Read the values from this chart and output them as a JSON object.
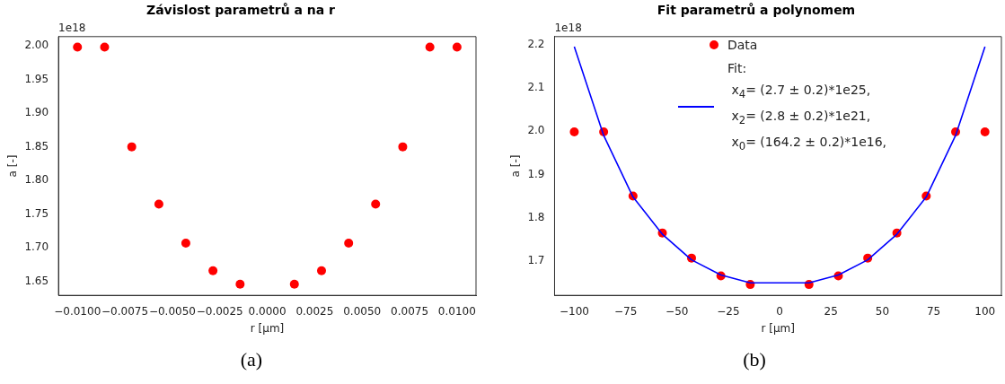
{
  "chart_data": [
    {
      "type": "scatter",
      "title": "Závislost parametrů a na r",
      "xlabel": "r [μm]",
      "ylabel": "a [-]",
      "annotations": [
        "1e18",
        "(a)"
      ],
      "marker": "circle",
      "grid": false,
      "x": [
        -0.01,
        -0.00857,
        -0.00714,
        -0.00571,
        -0.00429,
        -0.00286,
        -0.00143,
        0.00143,
        0.00286,
        0.00429,
        0.00571,
        0.00714,
        0.00857,
        0.01
      ],
      "series": [
        {
          "color": "#ff0000",
          "values": [
            1.998,
            1.998,
            1.85,
            1.765,
            1.707,
            1.666,
            1.646,
            1.646,
            1.666,
            1.707,
            1.765,
            1.85,
            1.998,
            1.998
          ]
        }
      ],
      "xlim": [
        -0.011,
        0.011
      ],
      "ylim": [
        1.6295,
        2.0136
      ],
      "xticks": [
        {
          "value": -0.01,
          "label": "−0.0100"
        },
        {
          "value": -0.0075,
          "label": "−0.0075"
        },
        {
          "value": -0.005,
          "label": "−0.0050"
        },
        {
          "value": -0.0025,
          "label": "−0.0025"
        },
        {
          "value": 0,
          "label": "0.0000"
        },
        {
          "value": 0.0025,
          "label": "0.0025"
        },
        {
          "value": 0.005,
          "label": "0.0050"
        },
        {
          "value": 0.0075,
          "label": "0.0075"
        },
        {
          "value": 0.01,
          "label": "0.0100"
        }
      ],
      "yticks": [
        {
          "value": 1.65,
          "label": "1.65"
        },
        {
          "value": 1.7,
          "label": "1.70"
        },
        {
          "value": 1.75,
          "label": "1.75"
        },
        {
          "value": 1.8,
          "label": "1.80"
        },
        {
          "value": 1.85,
          "label": "1.85"
        },
        {
          "value": 1.9,
          "label": "1.90"
        },
        {
          "value": 1.95,
          "label": "1.95"
        },
        {
          "value": 2,
          "label": "2.00"
        }
      ]
    },
    {
      "type": "scatter",
      "title": "Fit parametrů a polynomem",
      "xlabel": "r [μm]",
      "ylabel": "a [-]",
      "annotations": [
        "1e18",
        "(b)"
      ],
      "marker": "circle",
      "grid": false,
      "legend": "top",
      "x": [
        -100,
        -85.7,
        -71.4,
        -57.1,
        -42.9,
        -28.6,
        -14.3,
        14.3,
        28.6,
        42.9,
        57.1,
        71.4,
        85.7,
        100
      ],
      "series": [
        {
          "name": "Data",
          "color": "#ff0000",
          "values": [
            1.998,
            1.998,
            1.85,
            1.765,
            1.707,
            1.666,
            1.646,
            1.646,
            1.666,
            1.707,
            1.765,
            1.85,
            1.998,
            1.998
          ]
        },
        {
          "name": "Fit:\n x$_{4}$= (2.7 ± 0.2)*1e25,\n x$_{2}$= (2.8 ± 0.2)*1e21,\n x$_{0}$= (164.2 ± 0.2)*1e16,",
          "type": "line",
          "marker": "none",
          "line_style": "solid",
          "color": "#0000ff",
          "values": [
            2.195,
            1.99,
            1.848,
            1.762,
            1.703,
            1.668,
            1.65,
            1.65,
            1.668,
            1.703,
            1.762,
            1.848,
            1.99,
            2.195
          ]
        }
      ],
      "xlim": [
        -109.6,
        108
      ],
      "ylim": [
        1.621,
        2.218
      ],
      "xticks": [
        {
          "value": -100,
          "label": "−100"
        },
        {
          "value": -75,
          "label": "−75"
        },
        {
          "value": -50,
          "label": "−50"
        },
        {
          "value": -25,
          "label": "−25"
        },
        0,
        25,
        50,
        75,
        100
      ],
      "yticks": [
        {
          "value": 1.7,
          "label": "1.7"
        },
        {
          "value": 1.8,
          "label": "1.8"
        },
        {
          "value": 1.9,
          "label": "1.9"
        },
        {
          "value": 2,
          "label": "2.0"
        },
        {
          "value": 2.1,
          "label": "2.1"
        },
        {
          "value": 2.2,
          "label": "2.2"
        }
      ]
    }
  ]
}
